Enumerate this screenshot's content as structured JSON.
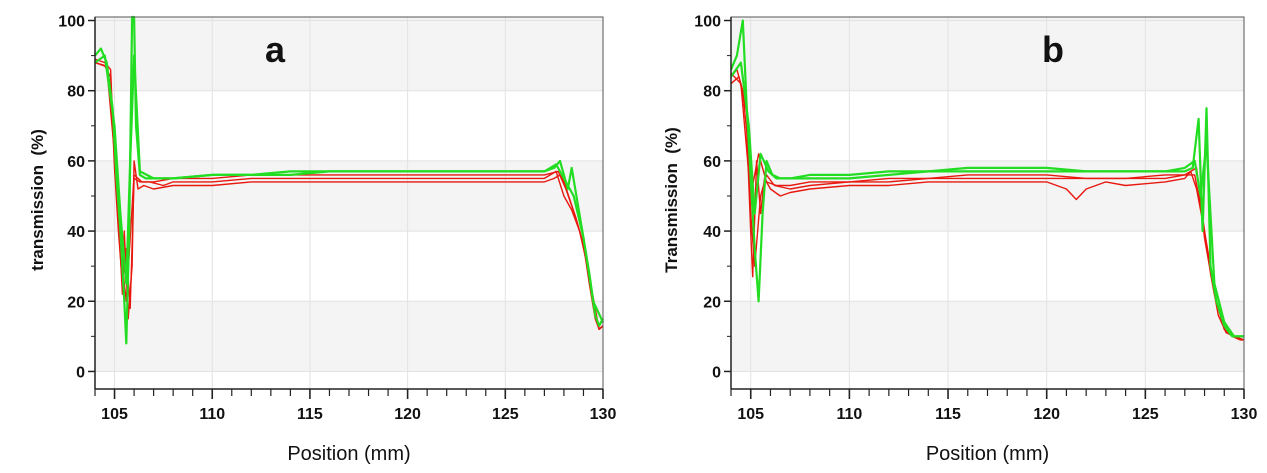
{
  "chart_data": [
    {
      "type": "line",
      "panel_label": "a",
      "xlabel": "Position (mm)",
      "ylabel": "transmission  (%)",
      "xlim": [
        104,
        130
      ],
      "ylim": [
        -5,
        101
      ],
      "xticks": [
        105,
        110,
        115,
        120,
        125,
        130
      ],
      "yticks": [
        0,
        20,
        40,
        60,
        80,
        100
      ],
      "grid": true,
      "banded_background": true,
      "series_colors": [
        "#e8180e",
        "#22dd22"
      ],
      "series": [
        {
          "color": "#e8180e",
          "x": [
            104,
            104.5,
            104.8,
            105.0,
            105.2,
            105.4,
            105.5,
            105.7,
            105.9,
            106.0,
            106.2,
            106.5,
            107,
            108,
            110,
            112,
            114,
            116,
            118,
            120,
            122,
            124,
            126,
            127,
            127.5,
            127.8,
            128.0,
            128.3,
            128.6,
            129.0,
            129.3,
            129.6,
            129.8,
            130
          ],
          "y": [
            89,
            88,
            86,
            60,
            45,
            22,
            40,
            15,
            30,
            60,
            52,
            53,
            52,
            53,
            53,
            54,
            54,
            54,
            54,
            54,
            54,
            54,
            54,
            54,
            55,
            56,
            54,
            49,
            44,
            36,
            25,
            15,
            12,
            13
          ]
        },
        {
          "color": "#e8180e",
          "x": [
            104,
            104.5,
            104.8,
            105.0,
            105.2,
            105.4,
            105.6,
            105.8,
            106.0,
            106.3,
            106.8,
            107.5,
            108,
            110,
            112,
            114,
            116,
            118,
            120,
            122,
            124,
            126,
            127,
            127.6,
            128.0,
            128.4,
            128.8,
            129.2,
            129.5,
            129.8,
            130
          ],
          "y": [
            88,
            87,
            84,
            58,
            40,
            25,
            35,
            18,
            55,
            54,
            54,
            53,
            54,
            54,
            55,
            55,
            55,
            55,
            55,
            55,
            55,
            55,
            55,
            57,
            50,
            46,
            40,
            30,
            20,
            12,
            13
          ]
        },
        {
          "color": "#e8180e",
          "x": [
            104,
            104.6,
            105.0,
            105.3,
            105.6,
            106.0,
            106.4,
            107,
            108,
            110,
            112,
            114,
            116,
            118,
            120,
            122,
            124,
            126,
            127,
            127.7,
            128.1,
            128.6,
            129.0,
            129.4,
            129.8,
            130
          ],
          "y": [
            88,
            87,
            62,
            35,
            20,
            56,
            54,
            54,
            55,
            55,
            56,
            56,
            56,
            56,
            56,
            56,
            56,
            56,
            56,
            57,
            52,
            44,
            36,
            24,
            12,
            13
          ]
        },
        {
          "color": "#22dd22",
          "x": [
            104,
            104.3,
            104.6,
            104.9,
            105.1,
            105.3,
            105.5,
            105.6,
            105.75,
            105.9,
            106.0,
            106.1,
            106.3,
            106.6,
            107,
            108,
            110,
            112,
            114,
            116,
            118,
            120,
            122,
            124,
            126,
            127,
            127.5,
            127.8,
            128.0,
            128.2,
            128.4,
            128.7,
            129.0,
            129.3,
            129.6,
            129.8,
            130
          ],
          "y": [
            90,
            92,
            88,
            75,
            55,
            40,
            20,
            8,
            40,
            101,
            101,
            70,
            56,
            55,
            55,
            55,
            56,
            56,
            56,
            57,
            57,
            57,
            57,
            57,
            57,
            57,
            58,
            60,
            56,
            52,
            58,
            48,
            38,
            28,
            16,
            13,
            15
          ]
        },
        {
          "color": "#22dd22",
          "x": [
            104,
            104.5,
            105.0,
            105.3,
            105.6,
            105.8,
            106.0,
            106.3,
            107,
            108,
            110,
            112,
            114,
            116,
            118,
            120,
            122,
            124,
            126,
            127,
            127.6,
            128.0,
            128.5,
            129.0,
            129.5,
            130
          ],
          "y": [
            88,
            90,
            70,
            45,
            25,
            60,
            90,
            57,
            55,
            55,
            56,
            56,
            57,
            57,
            57,
            57,
            57,
            57,
            57,
            57,
            59,
            55,
            50,
            38,
            20,
            14
          ]
        }
      ]
    },
    {
      "type": "line",
      "panel_label": "b",
      "xlabel": "Position (mm)",
      "ylabel": "Transmission  (%)",
      "xlim": [
        104,
        130
      ],
      "ylim": [
        -5,
        101
      ],
      "xticks": [
        105,
        110,
        115,
        120,
        125,
        130
      ],
      "yticks": [
        0,
        20,
        40,
        60,
        80,
        100
      ],
      "grid": true,
      "banded_background": true,
      "series_colors": [
        "#e8180e",
        "#22dd22"
      ],
      "series": [
        {
          "color": "#e8180e",
          "x": [
            104,
            104.3,
            104.6,
            104.8,
            105.0,
            105.1,
            105.3,
            105.5,
            105.7,
            106.0,
            106.5,
            107,
            108,
            110,
            112,
            114,
            116,
            118,
            120,
            121,
            121.5,
            122,
            123,
            124,
            126,
            127,
            127.3,
            127.6,
            128.0,
            128.3,
            128.6,
            129.0,
            129.4,
            129.8,
            130
          ],
          "y": [
            84,
            86,
            80,
            68,
            40,
            27,
            60,
            45,
            55,
            52,
            50,
            51,
            52,
            53,
            53,
            54,
            54,
            54,
            54,
            52,
            49,
            52,
            54,
            53,
            54,
            55,
            57,
            52,
            40,
            30,
            20,
            12,
            10,
            9,
            9
          ]
        },
        {
          "color": "#e8180e",
          "x": [
            104,
            104.4,
            104.8,
            105.0,
            105.2,
            105.5,
            105.8,
            106.2,
            107,
            108,
            110,
            112,
            114,
            116,
            118,
            120,
            122,
            124,
            126,
            127,
            127.5,
            127.9,
            128.3,
            128.7,
            129.1,
            129.5,
            130
          ],
          "y": [
            82,
            84,
            74,
            45,
            30,
            50,
            56,
            53,
            52,
            53,
            54,
            54,
            55,
            55,
            55,
            55,
            55,
            55,
            55,
            56,
            56,
            44,
            28,
            16,
            11,
            10,
            9
          ]
        },
        {
          "color": "#e8180e",
          "x": [
            104,
            104.5,
            105.0,
            105.4,
            105.8,
            106.3,
            107,
            108,
            110,
            112,
            114,
            116,
            118,
            120,
            122,
            124,
            126,
            127,
            127.6,
            128.0,
            128.5,
            129.0,
            129.5,
            130
          ],
          "y": [
            85,
            82,
            50,
            62,
            54,
            53,
            53,
            54,
            54,
            55,
            55,
            56,
            56,
            56,
            55,
            55,
            56,
            56,
            58,
            38,
            22,
            12,
            10,
            9
          ]
        },
        {
          "color": "#22dd22",
          "x": [
            104,
            104.3,
            104.6,
            104.8,
            105.0,
            105.2,
            105.4,
            105.6,
            105.8,
            106.1,
            106.5,
            107,
            108,
            110,
            112,
            114,
            116,
            118,
            120,
            122,
            124,
            126,
            127,
            127.4,
            127.7,
            127.9,
            128.1,
            128.3,
            128.6,
            129.0,
            129.4,
            129.8,
            130
          ],
          "y": [
            86,
            90,
            100,
            75,
            55,
            35,
            20,
            45,
            60,
            56,
            55,
            55,
            55,
            55,
            56,
            57,
            57,
            57,
            57,
            57,
            57,
            57,
            57,
            58,
            72,
            40,
            75,
            30,
            20,
            13,
            10,
            10,
            10
          ]
        },
        {
          "color": "#22dd22",
          "x": [
            104,
            104.5,
            104.9,
            105.2,
            105.5,
            105.9,
            106.3,
            107,
            108,
            110,
            112,
            114,
            116,
            118,
            120,
            122,
            124,
            126,
            127,
            127.5,
            127.8,
            128.1,
            128.5,
            129.0,
            129.5,
            130
          ],
          "y": [
            84,
            88,
            70,
            45,
            62,
            57,
            55,
            55,
            56,
            56,
            57,
            57,
            58,
            58,
            58,
            57,
            57,
            57,
            58,
            60,
            50,
            65,
            25,
            14,
            10,
            10
          ]
        }
      ]
    }
  ]
}
